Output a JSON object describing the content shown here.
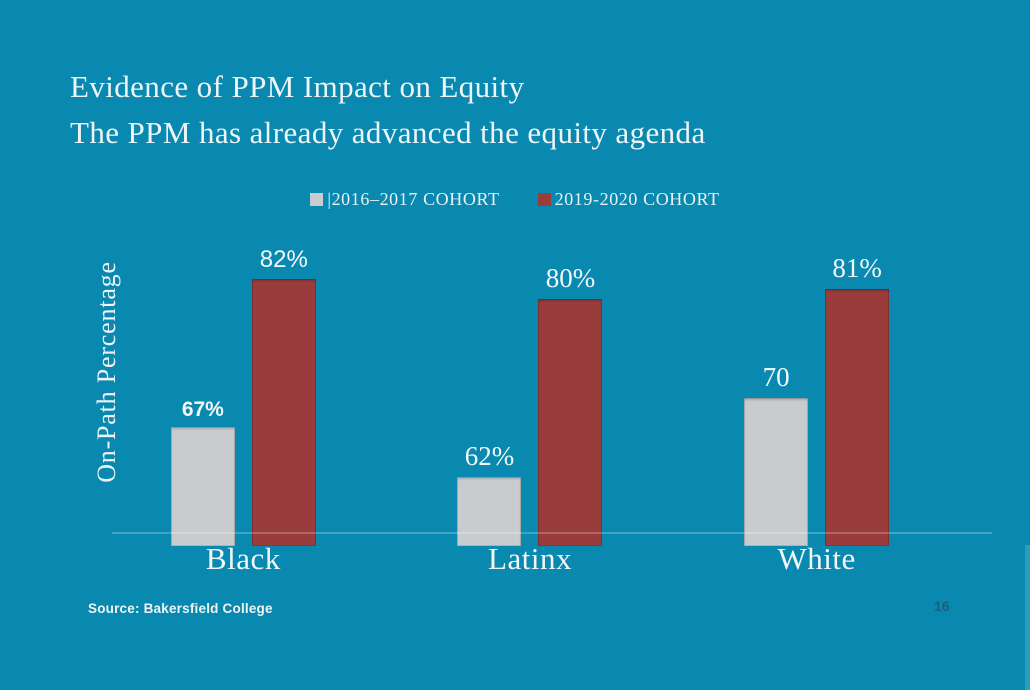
{
  "slide": {
    "title_line1": "Evidence of PPM Impact on Equity",
    "title_line2": "The PPM has already advanced the equity agenda",
    "source": "Source: Bakersfield College",
    "page_number": "16"
  },
  "colors": {
    "background": "#0989b0",
    "cohort_2016_bar": "#c9ccce",
    "cohort_2019_bar": "#9a3c3b",
    "text": "#eff5f6",
    "page_number": "#1c5e7d",
    "axis_line": "rgba(255,255,255,0.22)"
  },
  "chart_data": {
    "type": "bar",
    "title": "",
    "xlabel": "",
    "ylabel": "On-Path Percentage",
    "categories": [
      "Black",
      "Latinx",
      "White"
    ],
    "series": [
      {
        "name": "2016-2017 COHORT",
        "legend_label": "|2016–2017 COHORT",
        "color": "#c9ccce",
        "values": [
          67,
          62,
          70
        ],
        "labels": [
          "67%",
          "62%",
          "70"
        ],
        "label_styles": [
          "sans-bold",
          "serif",
          "serif"
        ]
      },
      {
        "name": "2019-2020 COHORT",
        "legend_label": "2019-2020 COHORT",
        "color": "#9a3c3b",
        "values": [
          82,
          80,
          81
        ],
        "labels": [
          "82%",
          "80%",
          "81%"
        ],
        "label_styles": [
          "sans",
          "serif",
          "serif"
        ]
      }
    ],
    "ylim": [
      55,
      84
    ],
    "grid": false,
    "legend_position": "top"
  }
}
